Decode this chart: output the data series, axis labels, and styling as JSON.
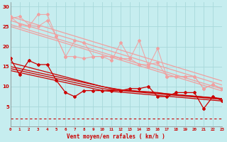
{
  "xlabel": "Vent moyen/en rafales ( km/h )",
  "ylabel": "",
  "background_color": "#c6edef",
  "grid_color": "#a8d8da",
  "x": [
    0,
    1,
    2,
    3,
    4,
    5,
    6,
    7,
    8,
    9,
    10,
    11,
    12,
    13,
    14,
    15,
    16,
    17,
    18,
    19,
    20,
    21,
    22,
    23
  ],
  "zigzag_light1": [
    27.5,
    25.5,
    25.0,
    28.0,
    28.0,
    22.5,
    17.5,
    21.5,
    21.0,
    17.5,
    17.5,
    16.5,
    21.0,
    17.0,
    21.5,
    15.0,
    19.5,
    12.5,
    12.5,
    12.5,
    12.5,
    9.5,
    10.5,
    9.5
  ],
  "zigzag_light2": [
    27.0,
    27.5,
    25.5,
    25.0,
    26.5,
    22.5,
    17.5,
    17.5,
    17.0,
    17.5,
    17.5,
    17.5,
    17.0,
    17.0,
    15.5,
    15.5,
    16.0,
    12.5,
    12.5,
    12.5,
    12.5,
    9.5,
    10.5,
    9.5
  ],
  "trend_light1": [
    27.5,
    26.8,
    26.1,
    25.4,
    24.7,
    24.0,
    23.3,
    22.6,
    21.9,
    21.2,
    20.5,
    19.8,
    19.1,
    18.4,
    17.7,
    17.0,
    16.3,
    15.6,
    14.9,
    14.2,
    13.5,
    12.8,
    12.1,
    11.4
  ],
  "trend_light2": [
    26.5,
    25.8,
    25.1,
    24.4,
    23.7,
    23.0,
    22.3,
    21.6,
    20.9,
    20.2,
    19.5,
    18.8,
    18.1,
    17.4,
    16.7,
    16.0,
    15.3,
    14.6,
    13.9,
    13.2,
    12.5,
    11.8,
    11.1,
    10.4
  ],
  "trend_light3": [
    25.5,
    24.8,
    24.1,
    23.4,
    22.7,
    22.0,
    21.3,
    20.6,
    19.9,
    19.2,
    18.5,
    17.8,
    17.1,
    16.4,
    15.7,
    15.0,
    14.3,
    13.6,
    12.9,
    12.2,
    11.5,
    10.8,
    10.1,
    9.4
  ],
  "trend_light4": [
    25.0,
    24.3,
    23.6,
    22.9,
    22.2,
    21.5,
    20.8,
    20.1,
    19.4,
    18.7,
    18.0,
    17.3,
    16.6,
    15.9,
    15.2,
    14.5,
    13.8,
    13.1,
    12.4,
    11.7,
    11.0,
    10.3,
    9.6,
    8.9
  ],
  "zigzag_dark1": [
    17.0,
    13.0,
    16.5,
    15.5,
    15.5,
    11.5,
    8.5,
    7.5,
    9.0,
    9.0,
    9.0,
    9.0,
    9.0,
    9.5,
    9.5,
    10.0,
    7.5,
    7.5,
    8.5,
    8.5,
    8.5,
    4.5,
    7.5,
    6.5
  ],
  "trend_dark1": [
    16.0,
    15.4,
    14.8,
    14.2,
    13.6,
    13.0,
    12.4,
    11.8,
    11.2,
    10.6,
    10.0,
    9.6,
    9.2,
    9.0,
    8.8,
    8.7,
    8.5,
    8.2,
    8.0,
    7.8,
    7.6,
    7.4,
    7.2,
    7.0
  ],
  "trend_dark2": [
    15.0,
    14.5,
    14.0,
    13.5,
    13.0,
    12.5,
    12.0,
    11.5,
    11.0,
    10.5,
    10.0,
    9.5,
    9.2,
    9.0,
    8.8,
    8.6,
    8.4,
    8.2,
    8.0,
    7.8,
    7.6,
    7.4,
    7.2,
    7.0
  ],
  "trend_dark3": [
    14.5,
    14.0,
    13.5,
    13.0,
    12.5,
    12.0,
    11.5,
    11.0,
    10.5,
    10.0,
    9.5,
    9.2,
    9.0,
    8.8,
    8.6,
    8.4,
    8.2,
    8.0,
    7.8,
    7.6,
    7.4,
    7.2,
    7.0,
    6.8
  ],
  "trend_dark4": [
    14.0,
    13.5,
    13.0,
    12.5,
    12.0,
    11.5,
    11.0,
    10.5,
    10.0,
    9.5,
    9.0,
    8.8,
    8.6,
    8.4,
    8.2,
    8.0,
    7.8,
    7.6,
    7.4,
    7.2,
    7.0,
    6.8,
    6.6,
    6.4
  ],
  "dashed_y": 2.0,
  "color_light": "#f0a0a0",
  "color_dark": "#cc0000",
  "color_dashed": "#cc0000",
  "xlim": [
    0,
    23
  ],
  "ylim": [
    0,
    31
  ],
  "yticks": [
    5,
    10,
    15,
    20,
    25,
    30
  ],
  "xticks": [
    0,
    1,
    2,
    3,
    4,
    5,
    6,
    7,
    8,
    9,
    10,
    11,
    12,
    13,
    14,
    15,
    16,
    17,
    18,
    19,
    20,
    21,
    22,
    23
  ]
}
